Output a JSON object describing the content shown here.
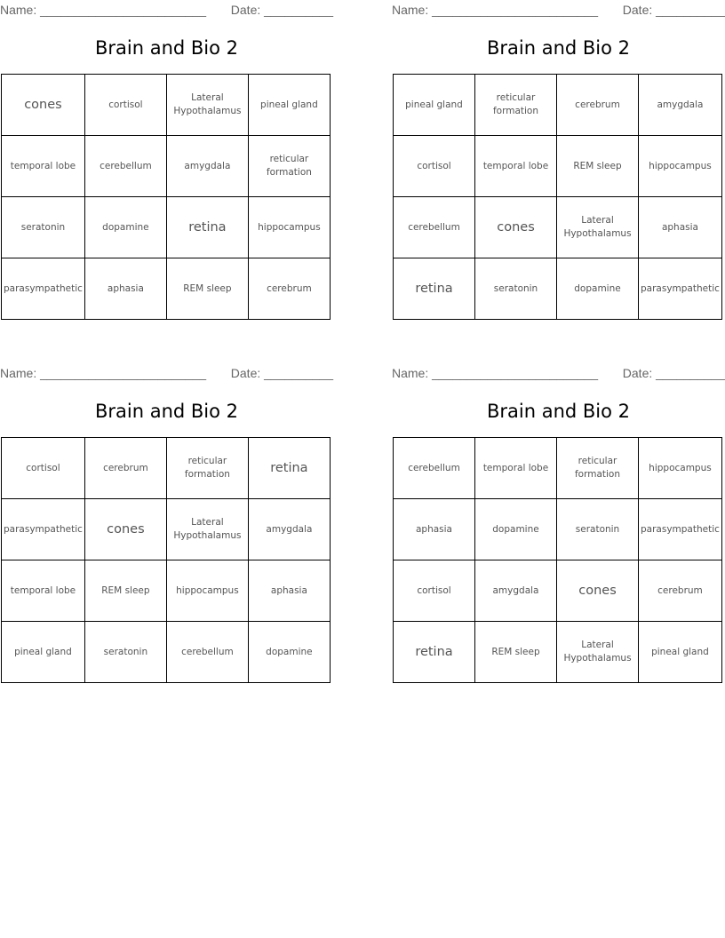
{
  "cards": [
    {
      "name_label": "Name: ________________________",
      "date_label": "Date: __________",
      "title": "Brain and Bio 2",
      "rows": [
        [
          "cones",
          "cortisol",
          "Lateral Hypothalamus",
          "pineal gland"
        ],
        [
          "temporal lobe",
          "cerebellum",
          "amygdala",
          "reticular formation"
        ],
        [
          "seratonin",
          "dopamine",
          "retina",
          "hippocampus"
        ],
        [
          "parasympathetic",
          "aphasia",
          "REM sleep",
          "cerebrum"
        ]
      ]
    },
    {
      "name_label": "Name: ________________________",
      "date_label": "Date: __________",
      "title": "Brain and Bio 2",
      "rows": [
        [
          "pineal gland",
          "reticular formation",
          "cerebrum",
          "amygdala"
        ],
        [
          "cortisol",
          "temporal lobe",
          "REM sleep",
          "hippocampus"
        ],
        [
          "cerebellum",
          "cones",
          "Lateral Hypothalamus",
          "aphasia"
        ],
        [
          "retina",
          "seratonin",
          "dopamine",
          "parasympathetic"
        ]
      ]
    },
    {
      "name_label": "Name: ________________________",
      "date_label": "Date: __________",
      "title": "Brain and Bio 2",
      "rows": [
        [
          "cortisol",
          "cerebrum",
          "reticular formation",
          "retina"
        ],
        [
          "parasympathetic",
          "cones",
          "Lateral Hypothalamus",
          "amygdala"
        ],
        [
          "temporal lobe",
          "REM sleep",
          "hippocampus",
          "aphasia"
        ],
        [
          "pineal gland",
          "seratonin",
          "cerebellum",
          "dopamine"
        ]
      ]
    },
    {
      "name_label": "Name: ________________________",
      "date_label": "Date: __________",
      "title": "Brain and Bio 2",
      "rows": [
        [
          "cerebellum",
          "temporal lobe",
          "reticular formation",
          "hippocampus"
        ],
        [
          "aphasia",
          "dopamine",
          "seratonin",
          "parasympathetic"
        ],
        [
          "cortisol",
          "amygdala",
          "cones",
          "cerebrum"
        ],
        [
          "retina",
          "REM sleep",
          "Lateral Hypothalamus",
          "pineal gland"
        ]
      ]
    }
  ]
}
